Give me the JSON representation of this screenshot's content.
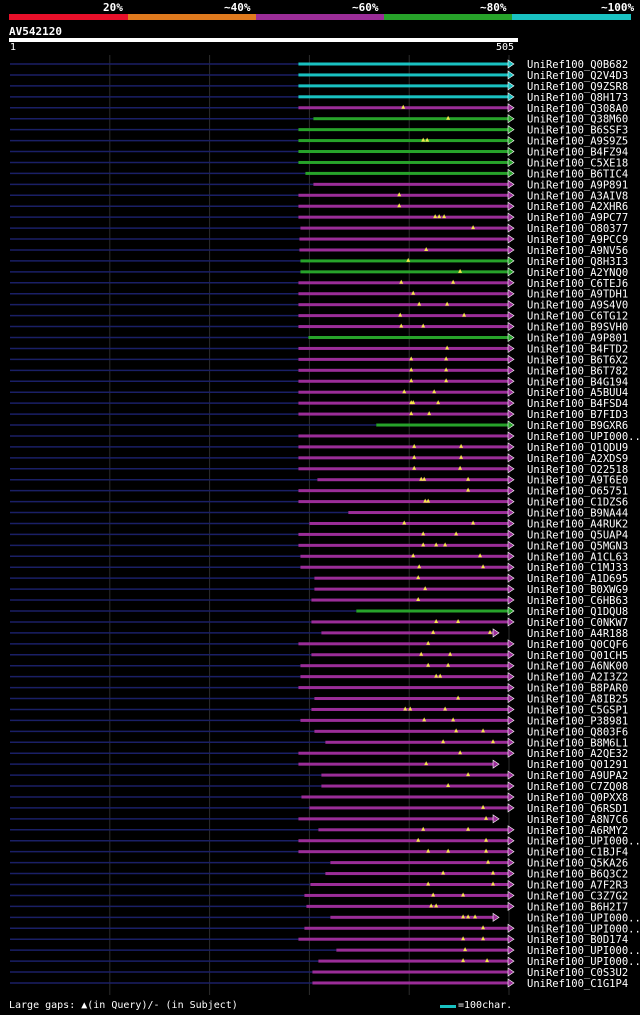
{
  "legend": [
    {
      "label": "20%",
      "color": "#e8102a"
    },
    {
      "label": "~40%",
      "color": "#e07a1e"
    },
    {
      "label": "~60%",
      "color": "#9b2d98"
    },
    {
      "label": "~80%",
      "color": "#27a32a"
    },
    {
      "label": "~100%",
      "color": "#19c2c2"
    }
  ],
  "query": {
    "name": "AV542120",
    "start_label": "1",
    "end_label": "505"
  },
  "footer": {
    "gaps_text": "Large gaps: ▲(in Query)/- (in Subject)",
    "scale_text": "=100char."
  },
  "chart_data": {
    "type": "alignment_overview",
    "query_length": 505,
    "hits": [
      {
        "id": "UniRef100_Q0B682",
        "start": 290,
        "end": 505,
        "color": "#19c2c2",
        "gaps": []
      },
      {
        "id": "UniRef100_Q2V4D3",
        "start": 290,
        "end": 505,
        "color": "#19c2c2",
        "gaps": []
      },
      {
        "id": "UniRef100_Q9ZSR8",
        "start": 290,
        "end": 505,
        "color": "#19c2c2",
        "gaps": []
      },
      {
        "id": "UniRef100_Q8H173",
        "start": 290,
        "end": 505,
        "color": "#19c2c2",
        "gaps": []
      },
      {
        "id": "UniRef100_Q308A0",
        "start": 290,
        "end": 505,
        "color": "#9b2d98",
        "gaps": [
          395
        ]
      },
      {
        "id": "UniRef100_Q38M60",
        "start": 305,
        "end": 505,
        "color": "#27a32a",
        "gaps": [
          440
        ]
      },
      {
        "id": "UniRef100_B6SSF3",
        "start": 290,
        "end": 505,
        "color": "#27a32a",
        "gaps": []
      },
      {
        "id": "UniRef100_A9S9Z5",
        "start": 290,
        "end": 505,
        "color": "#27a32a",
        "gaps": [
          415,
          419
        ]
      },
      {
        "id": "UniRef100_B4FZ94",
        "start": 290,
        "end": 505,
        "color": "#27a32a",
        "gaps": []
      },
      {
        "id": "UniRef100_C5XE18",
        "start": 290,
        "end": 505,
        "color": "#27a32a",
        "gaps": []
      },
      {
        "id": "UniRef100_B6TIC4",
        "start": 297,
        "end": 505,
        "color": "#27a32a",
        "gaps": []
      },
      {
        "id": "UniRef100_A9P891",
        "start": 305,
        "end": 505,
        "color": "#9b2d98",
        "gaps": []
      },
      {
        "id": "UniRef100_A3AIV8",
        "start": 290,
        "end": 505,
        "color": "#9b2d98",
        "gaps": [
          391
        ]
      },
      {
        "id": "UniRef100_A2XHR6",
        "start": 290,
        "end": 505,
        "color": "#9b2d98",
        "gaps": [
          391
        ]
      },
      {
        "id": "UniRef100_A9PC77",
        "start": 290,
        "end": 505,
        "color": "#9b2d98",
        "gaps": [
          427,
          431,
          436
        ]
      },
      {
        "id": "UniRef100_O80377",
        "start": 292,
        "end": 505,
        "color": "#9b2d98",
        "gaps": [
          465
        ]
      },
      {
        "id": "UniRef100_A9PCC9",
        "start": 291,
        "end": 505,
        "color": "#9b2d98",
        "gaps": []
      },
      {
        "id": "UniRef100_A9NV56",
        "start": 291,
        "end": 505,
        "color": "#9b2d98",
        "gaps": [
          418
        ]
      },
      {
        "id": "UniRef100_Q8H3I3",
        "start": 292,
        "end": 505,
        "color": "#27a32a",
        "gaps": [
          400
        ]
      },
      {
        "id": "UniRef100_A2YNQ0",
        "start": 292,
        "end": 505,
        "color": "#27a32a",
        "gaps": [
          452
        ]
      },
      {
        "id": "UniRef100_C6TEJ6",
        "start": 290,
        "end": 505,
        "color": "#9b2d98",
        "gaps": [
          393,
          445
        ]
      },
      {
        "id": "UniRef100_A9TDH1",
        "start": 290,
        "end": 505,
        "color": "#9b2d98",
        "gaps": [
          405
        ]
      },
      {
        "id": "UniRef100_A9S4V0",
        "start": 290,
        "end": 505,
        "color": "#9b2d98",
        "gaps": [
          411,
          439
        ]
      },
      {
        "id": "UniRef100_C6TG12",
        "start": 290,
        "end": 505,
        "color": "#9b2d98",
        "gaps": [
          392,
          456
        ]
      },
      {
        "id": "UniRef100_B9SVH0",
        "start": 290,
        "end": 505,
        "color": "#9b2d98",
        "gaps": [
          393,
          415
        ]
      },
      {
        "id": "UniRef100_A9P801",
        "start": 300,
        "end": 505,
        "color": "#27a32a",
        "gaps": []
      },
      {
        "id": "UniRef100_B4FTD2",
        "start": 290,
        "end": 505,
        "color": "#9b2d98",
        "gaps": [
          439
        ]
      },
      {
        "id": "UniRef100_B6T6X2",
        "start": 290,
        "end": 505,
        "color": "#9b2d98",
        "gaps": [
          403,
          438
        ]
      },
      {
        "id": "UniRef100_B6T782",
        "start": 290,
        "end": 505,
        "color": "#9b2d98",
        "gaps": [
          403,
          438
        ]
      },
      {
        "id": "UniRef100_B4G194",
        "start": 290,
        "end": 505,
        "color": "#9b2d98",
        "gaps": [
          403,
          438
        ]
      },
      {
        "id": "UniRef100_A5BUU4",
        "start": 290,
        "end": 505,
        "color": "#9b2d98",
        "gaps": [
          396,
          426
        ]
      },
      {
        "id": "UniRef100_B4FSD4",
        "start": 290,
        "end": 505,
        "color": "#9b2d98",
        "gaps": [
          403,
          405,
          430
        ]
      },
      {
        "id": "UniRef100_B7FID3",
        "start": 290,
        "end": 505,
        "color": "#9b2d98",
        "gaps": [
          403,
          421
        ]
      },
      {
        "id": "UniRef100_B9GXR6",
        "start": 368,
        "end": 505,
        "color": "#27a32a",
        "gaps": []
      },
      {
        "id": "UniRef100_UPI000..",
        "start": 290,
        "end": 505,
        "color": "#9b2d98",
        "gaps": []
      },
      {
        "id": "UniRef100_Q1QDU9",
        "start": 290,
        "end": 505,
        "color": "#9b2d98",
        "gaps": [
          406,
          453
        ]
      },
      {
        "id": "UniRef100_A2XDS9",
        "start": 290,
        "end": 505,
        "color": "#9b2d98",
        "gaps": [
          406,
          453
        ]
      },
      {
        "id": "UniRef100_O22518",
        "start": 290,
        "end": 505,
        "color": "#9b2d98",
        "gaps": [
          406,
          452
        ]
      },
      {
        "id": "UniRef100_A9T6E0",
        "start": 309,
        "end": 505,
        "color": "#9b2d98",
        "gaps": [
          413,
          416,
          460
        ]
      },
      {
        "id": "UniRef100_O65751",
        "start": 290,
        "end": 505,
        "color": "#9b2d98",
        "gaps": [
          460
        ]
      },
      {
        "id": "UniRef100_C1DZS6",
        "start": 290,
        "end": 505,
        "color": "#9b2d98",
        "gaps": [
          417,
          420
        ]
      },
      {
        "id": "UniRef100_B9NA44",
        "start": 340,
        "end": 505,
        "color": "#9b2d98",
        "gaps": []
      },
      {
        "id": "UniRef100_A4RUK2",
        "start": 301,
        "end": 505,
        "color": "#9b2d98",
        "gaps": [
          396,
          465
        ]
      },
      {
        "id": "UniRef100_Q5UAP4",
        "start": 290,
        "end": 505,
        "color": "#9b2d98",
        "gaps": [
          415,
          448
        ]
      },
      {
        "id": "UniRef100_Q5MGN3",
        "start": 290,
        "end": 505,
        "color": "#9b2d98",
        "gaps": [
          415,
          428,
          437
        ]
      },
      {
        "id": "UniRef100_A1CL63",
        "start": 292,
        "end": 505,
        "color": "#9b2d98",
        "gaps": [
          405,
          472
        ]
      },
      {
        "id": "UniRef100_C1MJ33",
        "start": 292,
        "end": 505,
        "color": "#9b2d98",
        "gaps": [
          411,
          475
        ]
      },
      {
        "id": "UniRef100_A1D695",
        "start": 306,
        "end": 505,
        "color": "#9b2d98",
        "gaps": [
          410
        ]
      },
      {
        "id": "UniRef100_B0XWG9",
        "start": 306,
        "end": 505,
        "color": "#9b2d98",
        "gaps": [
          417
        ]
      },
      {
        "id": "UniRef100_C6HB63",
        "start": 303,
        "end": 505,
        "color": "#9b2d98",
        "gaps": [
          410
        ]
      },
      {
        "id": "UniRef100_Q1DQU8",
        "start": 348,
        "end": 505,
        "color": "#27a32a",
        "gaps": []
      },
      {
        "id": "UniRef100_C0NKW7",
        "start": 303,
        "end": 505,
        "color": "#9b2d98",
        "gaps": [
          428,
          450
        ]
      },
      {
        "id": "UniRef100_A4R188",
        "start": 313,
        "end": 490,
        "color": "#9b2d98",
        "gaps": [
          425,
          482
        ]
      },
      {
        "id": "UniRef100_Q0CQF6",
        "start": 290,
        "end": 505,
        "color": "#9b2d98",
        "gaps": [
          420
        ]
      },
      {
        "id": "UniRef100_Q01CH5",
        "start": 303,
        "end": 505,
        "color": "#9b2d98",
        "gaps": [
          413,
          442
        ]
      },
      {
        "id": "UniRef100_A6NK00",
        "start": 292,
        "end": 505,
        "color": "#9b2d98",
        "gaps": [
          420,
          440
        ]
      },
      {
        "id": "UniRef100_A2I3Z2",
        "start": 292,
        "end": 505,
        "color": "#9b2d98",
        "gaps": [
          428,
          432
        ]
      },
      {
        "id": "UniRef100_B8PAR0",
        "start": 290,
        "end": 505,
        "color": "#9b2d98",
        "gaps": []
      },
      {
        "id": "UniRef100_A8IB25",
        "start": 306,
        "end": 505,
        "color": "#9b2d98",
        "gaps": [
          450
        ]
      },
      {
        "id": "UniRef100_C5GSP1",
        "start": 303,
        "end": 505,
        "color": "#9b2d98",
        "gaps": [
          397,
          402,
          437
        ]
      },
      {
        "id": "UniRef100_P38981",
        "start": 292,
        "end": 505,
        "color": "#9b2d98",
        "gaps": [
          416,
          445
        ]
      },
      {
        "id": "UniRef100_Q803F6",
        "start": 306,
        "end": 505,
        "color": "#9b2d98",
        "gaps": [
          448,
          475
        ]
      },
      {
        "id": "UniRef100_B8M6L1",
        "start": 317,
        "end": 505,
        "color": "#9b2d98",
        "gaps": [
          435,
          485
        ]
      },
      {
        "id": "UniRef100_A2QE32",
        "start": 290,
        "end": 505,
        "color": "#9b2d98",
        "gaps": [
          452
        ]
      },
      {
        "id": "UniRef100_Q01291",
        "start": 290,
        "end": 490,
        "color": "#9b2d98",
        "gaps": [
          418
        ]
      },
      {
        "id": "UniRef100_A9UPA2",
        "start": 313,
        "end": 505,
        "color": "#9b2d98",
        "gaps": [
          460
        ]
      },
      {
        "id": "UniRef100_C7ZQ08",
        "start": 313,
        "end": 505,
        "color": "#9b2d98",
        "gaps": [
          440
        ]
      },
      {
        "id": "UniRef100_Q0PXX8",
        "start": 293,
        "end": 505,
        "color": "#9b2d98",
        "gaps": []
      },
      {
        "id": "UniRef100_Q6RSD1",
        "start": 301,
        "end": 505,
        "color": "#9b2d98",
        "gaps": [
          475
        ]
      },
      {
        "id": "UniRef100_A8N7C6",
        "start": 290,
        "end": 490,
        "color": "#9b2d98",
        "gaps": [
          478
        ]
      },
      {
        "id": "UniRef100_A6RMY2",
        "start": 310,
        "end": 505,
        "color": "#9b2d98",
        "gaps": [
          415,
          460
        ]
      },
      {
        "id": "UniRef100_UPI000..",
        "start": 290,
        "end": 505,
        "color": "#9b2d98",
        "gaps": [
          410,
          478
        ]
      },
      {
        "id": "UniRef100_C1BJF4",
        "start": 290,
        "end": 505,
        "color": "#9b2d98",
        "gaps": [
          420,
          440,
          478
        ]
      },
      {
        "id": "UniRef100_Q5KA26",
        "start": 322,
        "end": 505,
        "color": "#9b2d98",
        "gaps": [
          480
        ]
      },
      {
        "id": "UniRef100_B6Q3C2",
        "start": 317,
        "end": 505,
        "color": "#9b2d98",
        "gaps": [
          435,
          485
        ]
      },
      {
        "id": "UniRef100_A7F2R3",
        "start": 302,
        "end": 505,
        "color": "#9b2d98",
        "gaps": [
          420,
          485
        ]
      },
      {
        "id": "UniRef100_C3Z7G2",
        "start": 296,
        "end": 505,
        "color": "#9b2d98",
        "gaps": [
          425,
          455
        ]
      },
      {
        "id": "UniRef100_B6H2I7",
        "start": 298,
        "end": 505,
        "color": "#9b2d98",
        "gaps": [
          423,
          428
        ]
      },
      {
        "id": "UniRef100_UPI000..",
        "start": 322,
        "end": 490,
        "color": "#9b2d98",
        "gaps": [
          455,
          460,
          467
        ]
      },
      {
        "id": "UniRef100_UPI000..",
        "start": 296,
        "end": 505,
        "color": "#9b2d98",
        "gaps": [
          475
        ]
      },
      {
        "id": "UniRef100_B0D174",
        "start": 290,
        "end": 505,
        "color": "#9b2d98",
        "gaps": [
          455,
          475
        ]
      },
      {
        "id": "UniRef100_UPI000..",
        "start": 328,
        "end": 505,
        "color": "#9b2d98",
        "gaps": [
          457
        ]
      },
      {
        "id": "UniRef100_UPI000..",
        "start": 310,
        "end": 505,
        "color": "#9b2d98",
        "gaps": [
          455,
          479
        ]
      },
      {
        "id": "UniRef100_C0S3U2",
        "start": 304,
        "end": 505,
        "color": "#9b2d98",
        "gaps": []
      },
      {
        "id": "UniRef100_C1G1P4",
        "start": 304,
        "end": 505,
        "color": "#9b2d98",
        "gaps": []
      }
    ]
  }
}
